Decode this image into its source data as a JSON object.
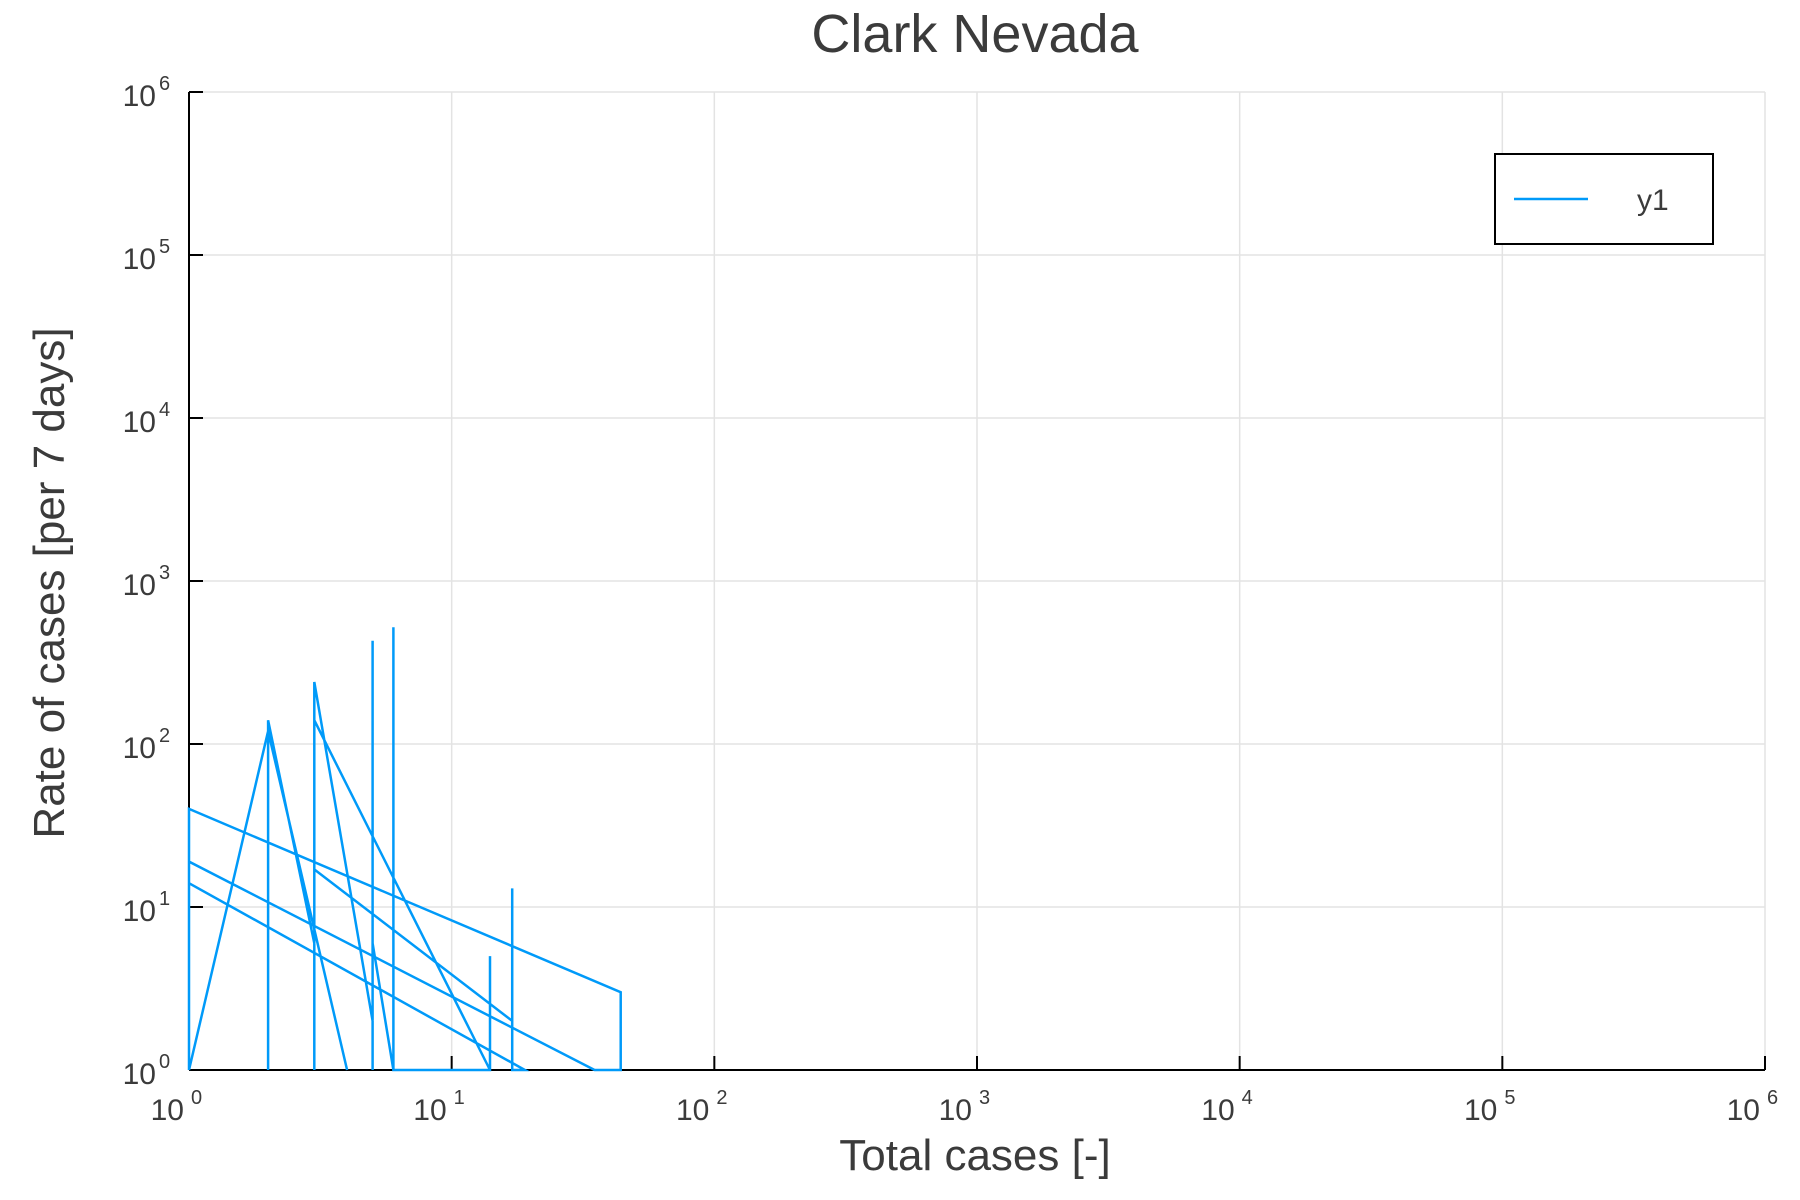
{
  "chart_data": {
    "type": "line",
    "title": "Clark Nevada",
    "xlabel": "Total cases [-]",
    "ylabel": "Rate of cases [per 7 days]",
    "x_scale": "log",
    "y_scale": "log",
    "xlim": [
      1,
      1000000
    ],
    "ylim": [
      1,
      1000000
    ],
    "x_ticks": [
      {
        "base": "10",
        "exp": "0"
      },
      {
        "base": "10",
        "exp": "1"
      },
      {
        "base": "10",
        "exp": "2"
      },
      {
        "base": "10",
        "exp": "3"
      },
      {
        "base": "10",
        "exp": "4"
      },
      {
        "base": "10",
        "exp": "5"
      },
      {
        "base": "10",
        "exp": "6"
      }
    ],
    "y_ticks": [
      {
        "base": "10",
        "exp": "0"
      },
      {
        "base": "10",
        "exp": "1"
      },
      {
        "base": "10",
        "exp": "2"
      },
      {
        "base": "10",
        "exp": "3"
      },
      {
        "base": "10",
        "exp": "4"
      },
      {
        "base": "10",
        "exp": "5"
      },
      {
        "base": "10",
        "exp": "6"
      }
    ],
    "grid": true,
    "legend": {
      "placement": "top-right"
    },
    "series": [
      {
        "name": "y1",
        "color": "#009af9",
        "points": [
          [
            1,
            1
          ],
          [
            1,
            40
          ],
          [
            44,
            3
          ],
          [
            44,
            1
          ],
          [
            35,
            1
          ],
          [
            1,
            19
          ],
          [
            1,
            14
          ],
          [
            19,
            1
          ],
          [
            17,
            1
          ],
          [
            17,
            13
          ],
          [
            17,
            2
          ],
          [
            3,
            17
          ],
          [
            3,
            1
          ],
          [
            3,
            240
          ],
          [
            5,
            2
          ],
          [
            5,
            430
          ],
          [
            5,
            1
          ],
          [
            5,
            6
          ],
          [
            6,
            1
          ],
          [
            6,
            520
          ],
          [
            6,
            1
          ],
          [
            14,
            1
          ],
          [
            14,
            5
          ],
          [
            14,
            1
          ],
          [
            3,
            140
          ],
          [
            3,
            6
          ],
          [
            2,
            140
          ],
          [
            2,
            1
          ],
          [
            2,
            120
          ],
          [
            4,
            1
          ],
          [
            2,
            120
          ],
          [
            1,
            1
          ]
        ]
      }
    ]
  }
}
